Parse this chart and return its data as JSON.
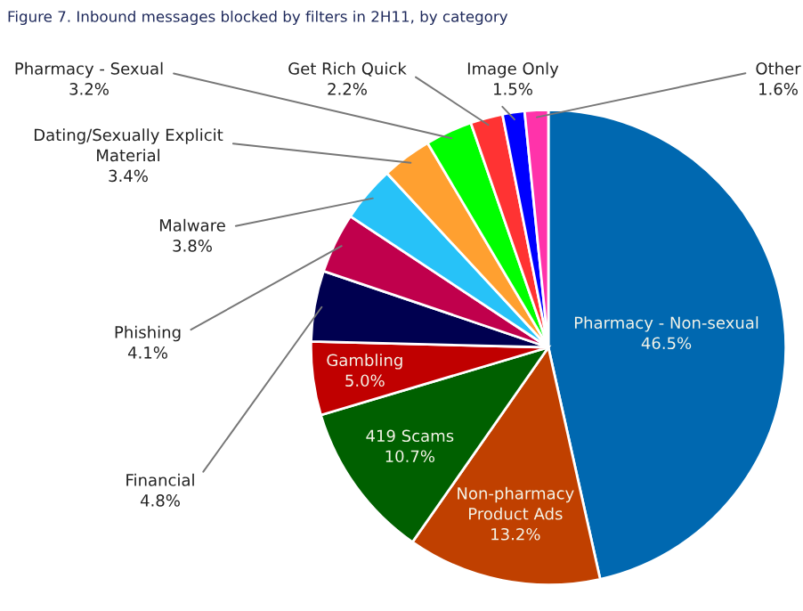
{
  "chart_data": {
    "type": "pie",
    "title": "Figure 7. Inbound messages blocked by filters in 2H11, by category",
    "categories": [
      "Pharmacy - Non-sexual",
      "Non-pharmacy Product Ads",
      "419 Scams",
      "Gambling",
      "Financial",
      "Phishing",
      "Malware",
      "Dating/Sexually Explicit Material",
      "Pharmacy - Sexual",
      "Get Rich Quick",
      "Image Only",
      "Other"
    ],
    "values": [
      46.5,
      13.2,
      10.7,
      5.0,
      4.8,
      4.1,
      3.8,
      3.4,
      3.2,
      2.2,
      1.5,
      1.6
    ],
    "colors": [
      "#0068b0",
      "#c04000",
      "#006000",
      "#c00000",
      "#000050",
      "#c0004c",
      "#27c2f8",
      "#ffa030",
      "#00ff00",
      "#ff3333",
      "#0000ff",
      "#ff33aa"
    ],
    "value_labels": [
      "46.5%",
      "13.2%",
      "10.7%",
      "5.0%",
      "4.8%",
      "4.1%",
      "3.8%",
      "3.4%",
      "3.2%",
      "2.2%",
      "1.5%",
      "1.6%"
    ]
  }
}
